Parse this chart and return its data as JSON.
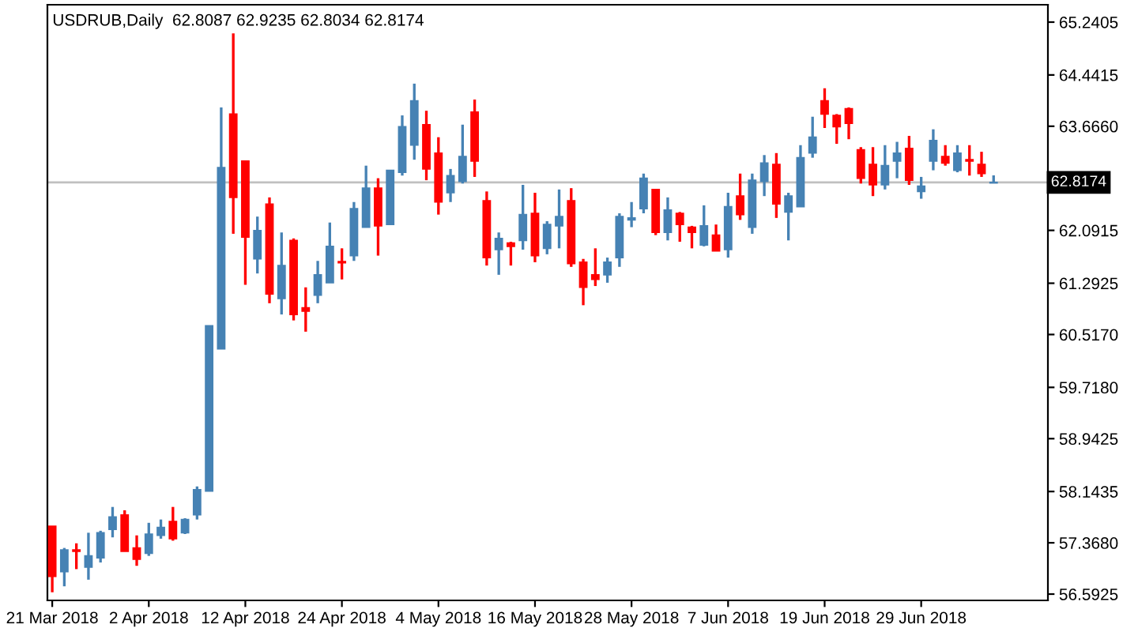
{
  "chart_data": {
    "type": "candlestick",
    "title": "USDRUB,Daily  62.8087 62.9235 62.8034 62.8174",
    "categories": [
      "21 Mar 2018",
      null,
      null,
      null,
      null,
      null,
      null,
      null,
      "2 Apr 2018",
      null,
      null,
      null,
      null,
      null,
      null,
      null,
      "12 Apr 2018",
      null,
      null,
      null,
      null,
      null,
      null,
      null,
      "24 Apr 2018",
      null,
      null,
      null,
      null,
      null,
      null,
      null,
      "4 May 2018",
      null,
      null,
      null,
      null,
      null,
      null,
      null,
      "16 May 2018",
      null,
      null,
      null,
      null,
      null,
      null,
      null,
      "28 May 2018",
      null,
      null,
      null,
      null,
      null,
      null,
      null,
      "7 Jun 2018",
      null,
      null,
      null,
      null,
      null,
      null,
      null,
      "19 Jun 2018",
      null,
      null,
      null,
      null,
      null,
      null,
      null,
      "29 Jun 2018",
      null,
      null,
      null,
      null,
      null,
      null
    ],
    "ohlc": [
      [
        57.62,
        57.62,
        56.62,
        56.86
      ],
      [
        56.93,
        57.29,
        56.71,
        57.26
      ],
      [
        57.26,
        57.36,
        56.97,
        57.24
      ],
      [
        57.0,
        57.52,
        56.81,
        57.17
      ],
      [
        57.14,
        57.55,
        57.07,
        57.52
      ],
      [
        57.57,
        57.91,
        57.45,
        57.76
      ],
      [
        57.79,
        57.86,
        57.24,
        57.24
      ],
      [
        57.29,
        57.48,
        57.02,
        57.12
      ],
      [
        57.21,
        57.67,
        57.17,
        57.5
      ],
      [
        57.48,
        57.72,
        57.43,
        57.6
      ],
      [
        57.69,
        57.91,
        57.4,
        57.43
      ],
      [
        57.52,
        57.74,
        57.5,
        57.72
      ],
      [
        57.79,
        58.22,
        57.72,
        58.17
      ],
      [
        58.15,
        60.65,
        58.15,
        60.65
      ],
      [
        60.3,
        63.95,
        60.3,
        63.04
      ],
      [
        63.85,
        65.07,
        62.04,
        62.59
      ],
      [
        63.14,
        63.14,
        61.27,
        61.99
      ],
      [
        61.66,
        62.3,
        61.44,
        62.09
      ],
      [
        62.49,
        62.59,
        60.99,
        61.13
      ],
      [
        61.06,
        62.06,
        60.82,
        61.56
      ],
      [
        61.94,
        61.97,
        60.73,
        60.82
      ],
      [
        60.92,
        61.23,
        60.56,
        60.87
      ],
      [
        61.11,
        61.63,
        60.99,
        61.42
      ],
      [
        61.3,
        62.21,
        61.3,
        61.85
      ],
      [
        61.62,
        61.82,
        61.35,
        61.6
      ],
      [
        61.71,
        62.52,
        61.63,
        62.42
      ],
      [
        62.14,
        63.07,
        62.14,
        62.73
      ],
      [
        62.73,
        62.88,
        61.71,
        62.16
      ],
      [
        62.18,
        63.0,
        62.18,
        63.0
      ],
      [
        62.97,
        63.83,
        62.92,
        63.66
      ],
      [
        63.38,
        64.31,
        63.16,
        64.05
      ],
      [
        63.69,
        63.9,
        62.85,
        63.02
      ],
      [
        63.26,
        63.5,
        62.33,
        62.52
      ],
      [
        62.66,
        63.02,
        62.52,
        62.92
      ],
      [
        62.83,
        63.69,
        62.8,
        63.21
      ],
      [
        63.88,
        64.07,
        62.9,
        63.14
      ],
      [
        62.54,
        62.68,
        61.56,
        61.68
      ],
      [
        61.8,
        62.06,
        61.42,
        61.97
      ],
      [
        61.9,
        61.92,
        61.56,
        61.85
      ],
      [
        61.94,
        62.78,
        61.8,
        62.33
      ],
      [
        62.35,
        62.66,
        61.61,
        61.71
      ],
      [
        61.82,
        62.23,
        61.73,
        62.18
      ],
      [
        62.16,
        62.71,
        61.82,
        62.3
      ],
      [
        62.54,
        62.73,
        61.54,
        61.59
      ],
      [
        61.61,
        61.66,
        60.96,
        61.23
      ],
      [
        61.42,
        61.82,
        61.25,
        61.35
      ],
      [
        61.42,
        61.68,
        61.3,
        61.61
      ],
      [
        61.68,
        62.35,
        61.54,
        62.3
      ],
      [
        62.25,
        62.52,
        62.14,
        62.28
      ],
      [
        62.42,
        62.95,
        62.35,
        62.88
      ],
      [
        62.71,
        62.71,
        62.02,
        62.06
      ],
      [
        62.06,
        62.59,
        61.94,
        62.4
      ],
      [
        62.35,
        62.37,
        61.92,
        62.18
      ],
      [
        62.14,
        62.16,
        61.82,
        62.06
      ],
      [
        61.87,
        62.47,
        61.85,
        62.16
      ],
      [
        62.02,
        62.18,
        61.78,
        61.78
      ],
      [
        61.8,
        62.66,
        61.68,
        62.45
      ],
      [
        62.61,
        62.95,
        62.25,
        62.33
      ],
      [
        62.14,
        62.95,
        62.04,
        62.85
      ],
      [
        62.83,
        63.23,
        62.61,
        63.11
      ],
      [
        63.09,
        63.26,
        62.28,
        62.49
      ],
      [
        62.37,
        62.66,
        61.94,
        62.61
      ],
      [
        62.45,
        63.38,
        62.45,
        63.19
      ],
      [
        63.26,
        63.81,
        63.19,
        63.5
      ],
      [
        64.05,
        64.24,
        63.64,
        63.85
      ],
      [
        63.83,
        63.85,
        63.4,
        63.66
      ],
      [
        63.93,
        63.95,
        63.47,
        63.71
      ],
      [
        63.31,
        63.35,
        62.8,
        62.88
      ],
      [
        63.09,
        63.35,
        62.61,
        62.78
      ],
      [
        62.78,
        63.38,
        62.71,
        63.07
      ],
      [
        63.14,
        63.43,
        62.88,
        63.26
      ],
      [
        63.33,
        63.52,
        62.78,
        62.85
      ],
      [
        62.68,
        62.9,
        62.57,
        62.76
      ],
      [
        63.14,
        63.62,
        63.0,
        63.45
      ],
      [
        63.21,
        63.38,
        63.07,
        63.11
      ],
      [
        63.0,
        63.38,
        62.97,
        63.26
      ],
      [
        63.16,
        63.38,
        62.92,
        63.14
      ],
      [
        63.09,
        63.28,
        62.9,
        62.95
      ],
      [
        62.8087,
        62.9235,
        62.8034,
        62.8174
      ]
    ],
    "colors": [
      "#ff0000",
      "#4682b4",
      "#ff0000",
      "#4682b4",
      "#4682b4",
      "#4682b4",
      "#ff0000",
      "#ff0000",
      "#4682b4",
      "#4682b4",
      "#ff0000",
      "#4682b4",
      "#4682b4",
      "#4682b4",
      "#4682b4",
      "#ff0000",
      "#ff0000",
      "#4682b4",
      "#ff0000",
      "#4682b4",
      "#ff0000",
      "#ff0000",
      "#4682b4",
      "#4682b4",
      "#ff0000",
      "#4682b4",
      "#4682b4",
      "#ff0000",
      "#4682b4",
      "#4682b4",
      "#4682b4",
      "#ff0000",
      "#ff0000",
      "#4682b4",
      "#4682b4",
      "#ff0000",
      "#ff0000",
      "#4682b4",
      "#ff0000",
      "#4682b4",
      "#ff0000",
      "#4682b4",
      "#4682b4",
      "#ff0000",
      "#ff0000",
      "#ff0000",
      "#4682b4",
      "#4682b4",
      "#4682b4",
      "#4682b4",
      "#ff0000",
      "#4682b4",
      "#ff0000",
      "#ff0000",
      "#4682b4",
      "#ff0000",
      "#4682b4",
      "#ff0000",
      "#4682b4",
      "#4682b4",
      "#ff0000",
      "#4682b4",
      "#4682b4",
      "#4682b4",
      "#ff0000",
      "#ff0000",
      "#ff0000",
      "#ff0000",
      "#ff0000",
      "#4682b4",
      "#4682b4",
      "#ff0000",
      "#4682b4",
      "#4682b4",
      "#ff0000",
      "#4682b4",
      "#ff0000",
      "#ff0000",
      "#4682b4"
    ],
    "ylim": [
      56.497,
      65.503
    ],
    "yticks": [
      56.5925,
      {
        "value": 57.368,
        "label": "57.3680"
      },
      58.1435,
      58.9425,
      {
        "value": 59.718,
        "label": "59.7180"
      },
      {
        "value": 60.517,
        "label": "60.5170"
      },
      61.2925,
      62.0915,
      {
        "value": 63.666,
        "label": "63.6660"
      },
      64.4415,
      65.2405
    ],
    "ref_lines": [
      {
        "axis": "y",
        "value": 62.8174,
        "label": "62.8174",
        "color": "#c0c0c0"
      }
    ],
    "grid": false
  }
}
